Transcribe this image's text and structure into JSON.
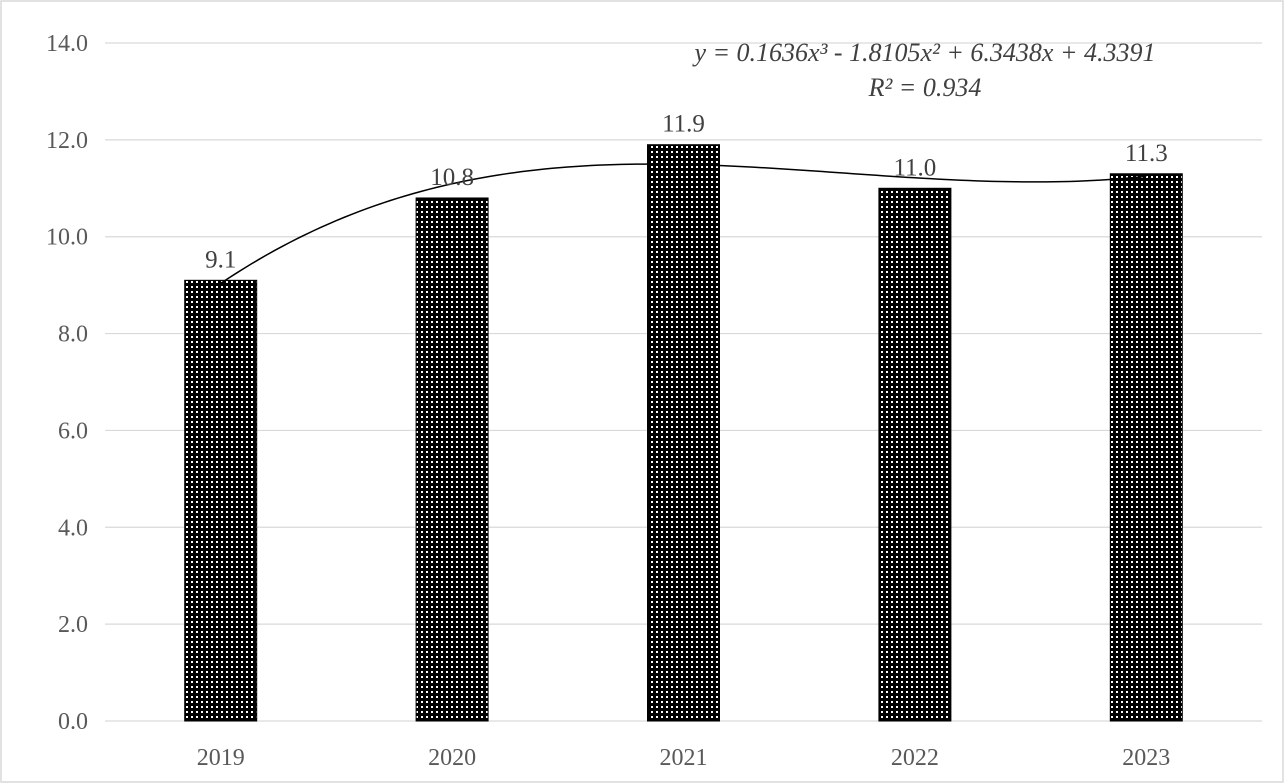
{
  "chart_data": {
    "type": "bar",
    "title": "",
    "xlabel": "",
    "ylabel": "",
    "categories": [
      "2019",
      "2020",
      "2021",
      "2022",
      "2023"
    ],
    "values": [
      9.1,
      10.8,
      11.9,
      11.0,
      11.3
    ],
    "data_labels": [
      "9.1",
      "10.8",
      "11.9",
      "11.0",
      "11.3"
    ],
    "y_ticks": [
      "0.0",
      "2.0",
      "4.0",
      "6.0",
      "8.0",
      "10.0",
      "12.0",
      "14.0"
    ],
    "ylim": [
      0,
      14
    ],
    "grid": true,
    "legend": "none",
    "bar_fill": "dotted black pattern",
    "trendline": {
      "type": "polynomial",
      "order": 3,
      "coefficients": [
        0.1636,
        -1.8105,
        6.3438,
        4.3391
      ],
      "equation": "y = 0.1636x³ - 1.8105x² + 6.3438x + 4.3391",
      "r_squared": "R² = 0.934"
    }
  }
}
